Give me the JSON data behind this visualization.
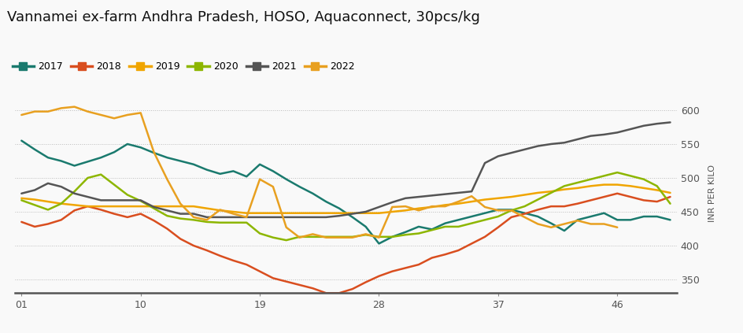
{
  "title": "Vannamei ex-farm Andhra Pradesh, HOSO, Aquaconnect, 30pcs/kg",
  "ylabel": "INR PER KILO",
  "xticks": [
    1,
    10,
    19,
    28,
    37,
    46
  ],
  "xtick_labels": [
    "01",
    "10",
    "19",
    "28",
    "37",
    "46"
  ],
  "ylim": [
    330,
    625
  ],
  "yticks": [
    350,
    400,
    450,
    500,
    550,
    600
  ],
  "series": {
    "2017": {
      "color": "#1a7a6e",
      "data_x": [
        1,
        2,
        3,
        4,
        5,
        6,
        7,
        8,
        9,
        10,
        11,
        12,
        13,
        14,
        15,
        16,
        17,
        18,
        19,
        20,
        21,
        22,
        23,
        24,
        25,
        26,
        27,
        28,
        29,
        30,
        31,
        32,
        33,
        34,
        35,
        36,
        37,
        38,
        39,
        40,
        41,
        42,
        43,
        44,
        45,
        46,
        47,
        48,
        49,
        50
      ],
      "data_y": [
        555,
        542,
        530,
        525,
        518,
        524,
        530,
        538,
        550,
        545,
        537,
        530,
        525,
        520,
        512,
        506,
        510,
        502,
        520,
        510,
        498,
        487,
        477,
        465,
        455,
        442,
        428,
        403,
        413,
        420,
        428,
        424,
        433,
        438,
        443,
        448,
        453,
        453,
        448,
        443,
        433,
        422,
        438,
        443,
        448,
        438,
        438,
        443,
        443,
        438
      ]
    },
    "2018": {
      "color": "#d94e1f",
      "data_x": [
        1,
        2,
        3,
        4,
        5,
        6,
        7,
        8,
        9,
        10,
        11,
        12,
        13,
        14,
        15,
        16,
        17,
        18,
        19,
        20,
        21,
        22,
        23,
        24,
        25,
        26,
        27,
        28,
        29,
        30,
        31,
        32,
        33,
        34,
        35,
        36,
        37,
        38,
        39,
        40,
        41,
        42,
        43,
        44,
        45,
        46,
        47,
        48,
        49,
        50
      ],
      "data_y": [
        435,
        428,
        432,
        438,
        452,
        458,
        453,
        447,
        442,
        447,
        437,
        425,
        410,
        400,
        393,
        385,
        378,
        372,
        362,
        352,
        347,
        342,
        337,
        330,
        330,
        336,
        346,
        355,
        362,
        367,
        372,
        382,
        387,
        393,
        403,
        413,
        427,
        442,
        447,
        453,
        458,
        458,
        462,
        467,
        472,
        477,
        472,
        467,
        465,
        472
      ]
    },
    "2019": {
      "color": "#f0a500",
      "data_x": [
        1,
        2,
        3,
        4,
        5,
        6,
        7,
        8,
        9,
        10,
        11,
        12,
        13,
        14,
        15,
        16,
        17,
        18,
        19,
        20,
        21,
        22,
        23,
        24,
        25,
        26,
        27,
        28,
        29,
        30,
        31,
        32,
        33,
        34,
        35,
        36,
        37,
        38,
        39,
        40,
        41,
        42,
        43,
        44,
        45,
        46,
        47,
        48,
        49,
        50
      ],
      "data_y": [
        470,
        468,
        465,
        462,
        460,
        458,
        458,
        458,
        458,
        458,
        458,
        458,
        458,
        458,
        455,
        452,
        450,
        448,
        448,
        448,
        448,
        448,
        448,
        448,
        448,
        448,
        448,
        448,
        450,
        452,
        455,
        457,
        460,
        462,
        465,
        468,
        470,
        472,
        475,
        478,
        480,
        483,
        485,
        488,
        490,
        490,
        488,
        485,
        482,
        478
      ]
    },
    "2020": {
      "color": "#8db600",
      "data_x": [
        1,
        2,
        3,
        4,
        5,
        6,
        7,
        8,
        9,
        10,
        11,
        12,
        13,
        14,
        15,
        16,
        17,
        18,
        19,
        20,
        21,
        22,
        23,
        24,
        25,
        26,
        27,
        28,
        29,
        30,
        31,
        32,
        33,
        34,
        35,
        36,
        37,
        38,
        39,
        40,
        41,
        42,
        43,
        44,
        45,
        46,
        47,
        48,
        49,
        50
      ],
      "data_y": [
        467,
        460,
        453,
        462,
        480,
        500,
        505,
        490,
        475,
        466,
        455,
        444,
        440,
        438,
        435,
        434,
        434,
        434,
        418,
        412,
        408,
        413,
        413,
        413,
        413,
        413,
        416,
        413,
        413,
        416,
        418,
        423,
        428,
        428,
        433,
        438,
        443,
        452,
        458,
        468,
        478,
        488,
        493,
        498,
        503,
        508,
        503,
        498,
        488,
        462
      ]
    },
    "2021": {
      "color": "#555555",
      "data_x": [
        1,
        2,
        3,
        4,
        5,
        6,
        7,
        8,
        9,
        10,
        11,
        12,
        13,
        14,
        15,
        16,
        17,
        18,
        19,
        20,
        21,
        22,
        23,
        24,
        25,
        26,
        27,
        28,
        29,
        30,
        31,
        32,
        33,
        34,
        35,
        36,
        37,
        38,
        39,
        40,
        41,
        42,
        43,
        44,
        45,
        46,
        47,
        48,
        49,
        50
      ],
      "data_y": [
        477,
        482,
        492,
        487,
        477,
        472,
        467,
        467,
        467,
        467,
        457,
        452,
        447,
        447,
        442,
        442,
        442,
        442,
        442,
        442,
        442,
        442,
        442,
        442,
        444,
        447,
        450,
        457,
        464,
        470,
        472,
        474,
        476,
        478,
        480,
        522,
        532,
        537,
        542,
        547,
        550,
        552,
        557,
        562,
        564,
        567,
        572,
        577,
        580,
        582
      ]
    },
    "2022": {
      "color": "#e8a020",
      "data_x": [
        1,
        2,
        3,
        4,
        5,
        6,
        7,
        8,
        9,
        10,
        11,
        12,
        13,
        14,
        15,
        16,
        17,
        18,
        19,
        20,
        21,
        22,
        23,
        24,
        25,
        26,
        27,
        28,
        29,
        30,
        31,
        32,
        33,
        34,
        35,
        36,
        37,
        38,
        39,
        40,
        41,
        42,
        43,
        44,
        45,
        46
      ],
      "data_y": [
        593,
        598,
        598,
        603,
        605,
        598,
        593,
        588,
        593,
        596,
        538,
        498,
        462,
        442,
        438,
        453,
        447,
        442,
        498,
        487,
        427,
        412,
        417,
        412,
        412,
        412,
        417,
        412,
        457,
        458,
        452,
        458,
        458,
        465,
        473,
        457,
        452,
        452,
        442,
        432,
        427,
        432,
        437,
        432,
        432,
        427
      ]
    }
  },
  "legend_order": [
    "2017",
    "2018",
    "2019",
    "2020",
    "2021",
    "2022"
  ],
  "background_color": "#f9f9f9",
  "grid_color": "#bbbbbb",
  "title_fontsize": 13,
  "legend_fontsize": 9
}
